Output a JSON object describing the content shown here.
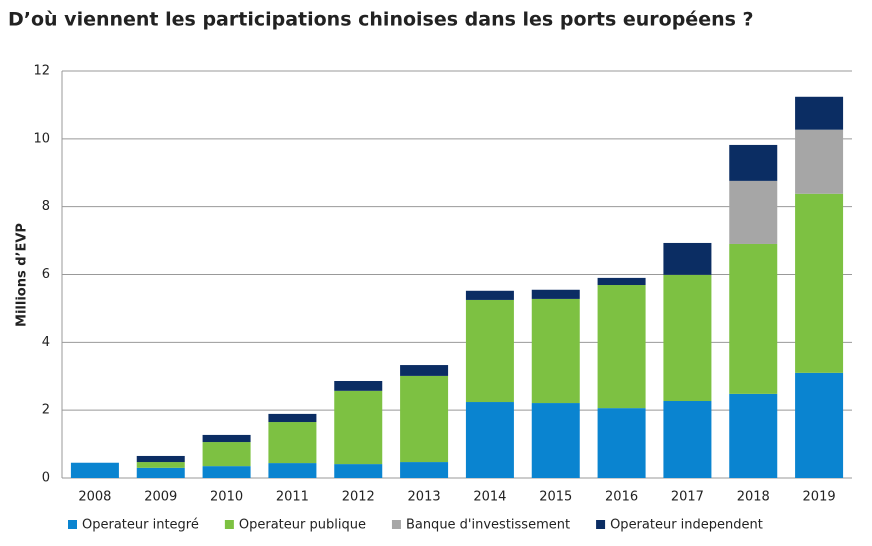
{
  "chart_data": {
    "type": "stacked_bar",
    "title": "D’où viennent les participations chinoises dans les ports européens ?",
    "y_label": "Millions d’EVP",
    "categories": [
      "2008",
      "2009",
      "2010",
      "2011",
      "2012",
      "2013",
      "2014",
      "2015",
      "2016",
      "2017",
      "2018",
      "2019"
    ],
    "series": [
      {
        "name": "Operateur integré",
        "color": "#0a84d0",
        "values": [
          0.45,
          0.3,
          0.35,
          0.44,
          0.41,
          0.47,
          2.24,
          2.21,
          2.06,
          2.27,
          2.48,
          3.1
        ]
      },
      {
        "name": "Operateur publique",
        "color": "#7dc142",
        "values": [
          0,
          0.17,
          0.71,
          1.21,
          2.16,
          2.54,
          3.01,
          3.07,
          3.63,
          3.72,
          4.42,
          5.28
        ]
      },
      {
        "name": "Banque d'investissement",
        "color": "#a6a6a6",
        "values": [
          0,
          0,
          0,
          0,
          0,
          0,
          0,
          0,
          0,
          0,
          1.86,
          1.89
        ]
      },
      {
        "name": "Operateur independent",
        "color": "#0b2d63",
        "values": [
          0,
          0.18,
          0.21,
          0.24,
          0.29,
          0.32,
          0.27,
          0.27,
          0.21,
          0.94,
          1.06,
          0.97
        ]
      }
    ],
    "ylim": [
      0,
      12
    ],
    "yticks": [
      0,
      2,
      4,
      6,
      8,
      10,
      12
    ],
    "grid": true,
    "legend": "bottom"
  }
}
